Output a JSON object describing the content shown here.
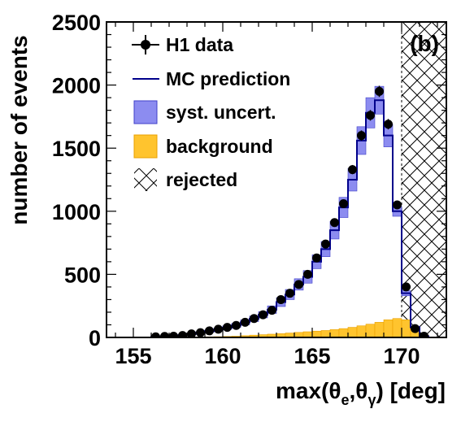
{
  "chart_data": {
    "type": "histogram",
    "panel_label": "(b)",
    "xlabel": "max(θe,θγ) [deg]",
    "xlabel_parts": {
      "prefix": "max(θ",
      "sub1": "e",
      "mid": ",θ",
      "sub2": "γ",
      "suffix": ") [deg]"
    },
    "ylabel": "number of events",
    "xlim": [
      153.5,
      172.5
    ],
    "ylim": [
      0,
      2500
    ],
    "x_ticks": [
      155,
      160,
      165,
      170
    ],
    "y_ticks": [
      0,
      500,
      1000,
      1500,
      2000,
      2500
    ],
    "bin_width": 0.5,
    "rejected_from": 170.0,
    "legend": [
      {
        "key": "data",
        "label": "H1 data"
      },
      {
        "key": "mc",
        "label": "MC prediction"
      },
      {
        "key": "syst",
        "label": "syst. uncert."
      },
      {
        "key": "bkg",
        "label": "background"
      },
      {
        "key": "rej",
        "label": "rejected"
      }
    ],
    "data_points": {
      "x": [
        156.25,
        156.75,
        157.25,
        157.75,
        158.25,
        158.75,
        159.25,
        159.75,
        160.25,
        160.75,
        161.25,
        161.75,
        162.25,
        162.75,
        163.25,
        163.75,
        164.25,
        164.75,
        165.25,
        165.75,
        166.25,
        166.75,
        167.25,
        167.75,
        168.25,
        168.75,
        169.25,
        169.75,
        170.25,
        170.75,
        171.25
      ],
      "y": [
        5,
        8,
        10,
        15,
        28,
        38,
        52,
        65,
        80,
        95,
        120,
        150,
        180,
        215,
        300,
        350,
        420,
        500,
        630,
        740,
        910,
        1060,
        1330,
        1600,
        1760,
        1950,
        1690,
        1050,
        400,
        70,
        10
      ]
    },
    "mc_prediction": {
      "bin_edges": [
        153.5,
        156.0,
        156.5,
        157.0,
        157.5,
        158.0,
        158.5,
        159.0,
        159.5,
        160.0,
        160.5,
        161.0,
        161.5,
        162.0,
        162.5,
        163.0,
        163.5,
        164.0,
        164.5,
        165.0,
        165.5,
        166.0,
        166.5,
        167.0,
        167.5,
        168.0,
        168.5,
        169.0,
        169.5,
        170.0,
        170.5,
        171.0,
        171.5,
        172.5
      ],
      "values": [
        0,
        5,
        8,
        12,
        18,
        28,
        38,
        50,
        62,
        78,
        95,
        120,
        148,
        180,
        220,
        280,
        340,
        420,
        480,
        600,
        700,
        850,
        1030,
        1250,
        1560,
        1780,
        1880,
        1600,
        1000,
        350,
        80,
        10,
        0
      ]
    },
    "syst_uncert": {
      "x_start": 156.0,
      "low": [
        4,
        6,
        9,
        14,
        22,
        30,
        40,
        50,
        64,
        78,
        100,
        126,
        155,
        190,
        245,
        300,
        375,
        430,
        545,
        640,
        780,
        950,
        1160,
        1450,
        1660,
        1770,
        1510,
        960,
        330,
        70,
        6
      ],
      "high": [
        7,
        10,
        15,
        22,
        34,
        46,
        60,
        74,
        92,
        112,
        140,
        170,
        205,
        250,
        315,
        380,
        465,
        530,
        655,
        760,
        920,
        1110,
        1340,
        1670,
        1900,
        1990,
        1690,
        1040,
        370,
        90,
        14
      ]
    },
    "background": {
      "x_start": 156.0,
      "values": [
        1,
        1,
        2,
        2,
        3,
        4,
        5,
        6,
        8,
        10,
        14,
        18,
        22,
        26,
        30,
        35,
        40,
        45,
        50,
        55,
        62,
        70,
        80,
        92,
        105,
        120,
        140,
        150,
        140,
        80,
        20
      ]
    },
    "colors": {
      "data": "#000000",
      "mc": "#00008b",
      "syst_fill": "#8c8cf0",
      "syst_edge": "#4040c8",
      "bkg_fill": "#ffc42e",
      "bkg_edge": "#e8a000",
      "hatch": "#000000"
    }
  }
}
